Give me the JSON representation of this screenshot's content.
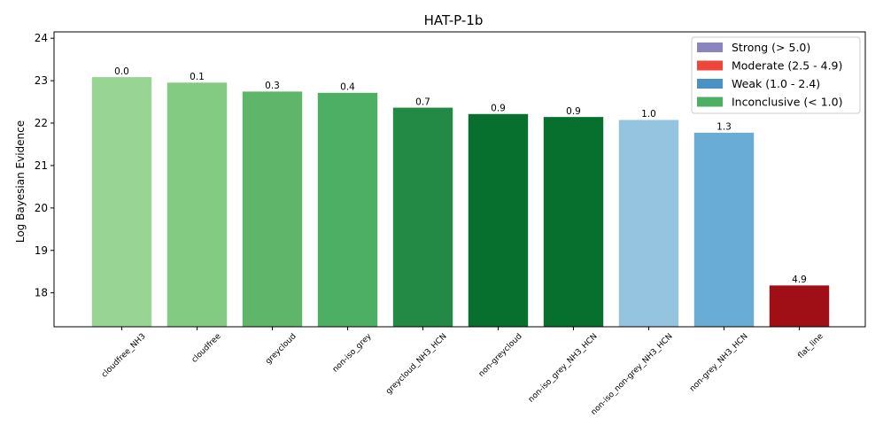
{
  "chart_data": {
    "type": "bar",
    "title": "HAT-P-1b",
    "xlabel": "",
    "ylabel": "Log Bayesian Evidence",
    "ylim": [
      17.2,
      24.15
    ],
    "yticks": [
      18,
      19,
      20,
      21,
      22,
      23,
      24
    ],
    "grid": false,
    "legend_position": "top-right",
    "categories": [
      "cloudfree_NH3",
      "cloudfree",
      "greycloud",
      "non-iso_grey",
      "greycloud_NH3_HCN",
      "non-greycloud",
      "non-iso_grey_NH3_HCN",
      "non-iso_non-grey_NH3_HCN",
      "non-grey_NH3_HCN",
      "flat_line"
    ],
    "values": [
      23.09,
      22.96,
      22.75,
      22.72,
      22.37,
      22.22,
      22.15,
      22.08,
      21.78,
      18.18
    ],
    "bar_labels": [
      "0.0",
      "0.1",
      "0.3",
      "0.4",
      "0.7",
      "0.9",
      "0.9",
      "1.0",
      "1.3",
      "4.9"
    ],
    "bar_colors": [
      "#98d594",
      "#83ca82",
      "#5fb66b",
      "#4daf63",
      "#228a44",
      "#07702f",
      "#07702f",
      "#94c4df",
      "#69acd5",
      "#a00e16"
    ],
    "legend": [
      {
        "label": "Strong (> 5.0)",
        "color": "#8885bf"
      },
      {
        "label": "Moderate (2.5 - 4.9)",
        "color": "#ee463a"
      },
      {
        "label": "Weak (1.0 - 2.4)",
        "color": "#4c91c4"
      },
      {
        "label": "Inconclusive (< 1.0)",
        "color": "#4eaf63"
      }
    ]
  }
}
